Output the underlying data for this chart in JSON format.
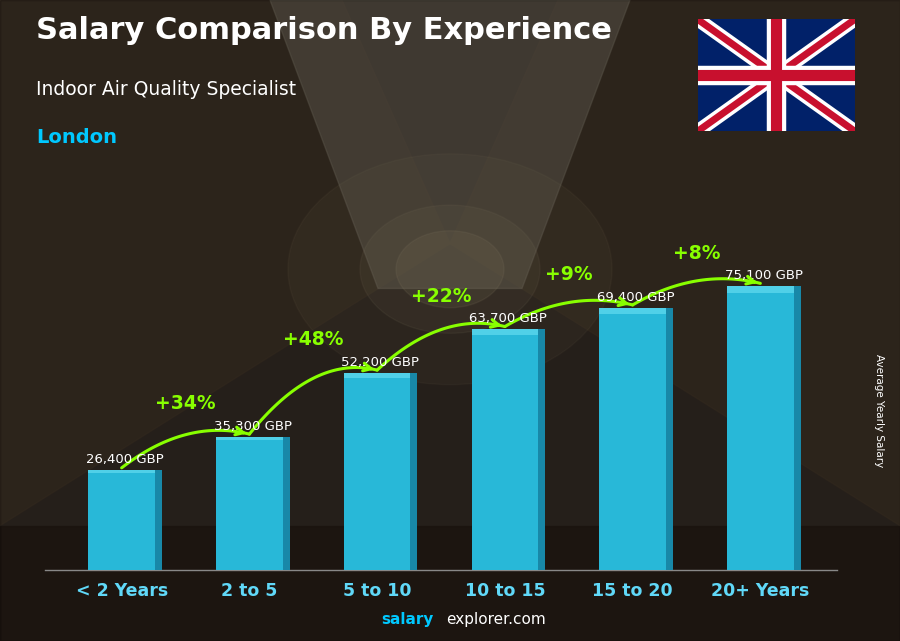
{
  "title": "Salary Comparison By Experience",
  "subtitle": "Indoor Air Quality Specialist",
  "city": "London",
  "categories": [
    "< 2 Years",
    "2 to 5",
    "5 to 10",
    "10 to 15",
    "15 to 20",
    "20+ Years"
  ],
  "values": [
    26400,
    35300,
    52200,
    63700,
    69400,
    75100
  ],
  "labels": [
    "26,400 GBP",
    "35,300 GBP",
    "52,200 GBP",
    "63,700 GBP",
    "69,400 GBP",
    "75,100 GBP"
  ],
  "pct_changes": [
    "+34%",
    "+48%",
    "+22%",
    "+9%",
    "+8%"
  ],
  "bar_color": "#28b8d8",
  "bar_color_dark": "#1888a8",
  "bar_color_top": "#50d0e8",
  "pct_color": "#88ff00",
  "label_color": "#ffffff",
  "title_color": "#ffffff",
  "subtitle_color": "#ffffff",
  "city_color": "#00c8ff",
  "footer_salary_color": "#00c8ff",
  "footer_rest_color": "#ffffff",
  "side_label": "Average Yearly Salary",
  "ylim_max": 88000,
  "bar_width": 0.52,
  "side_bar_width": 0.055
}
